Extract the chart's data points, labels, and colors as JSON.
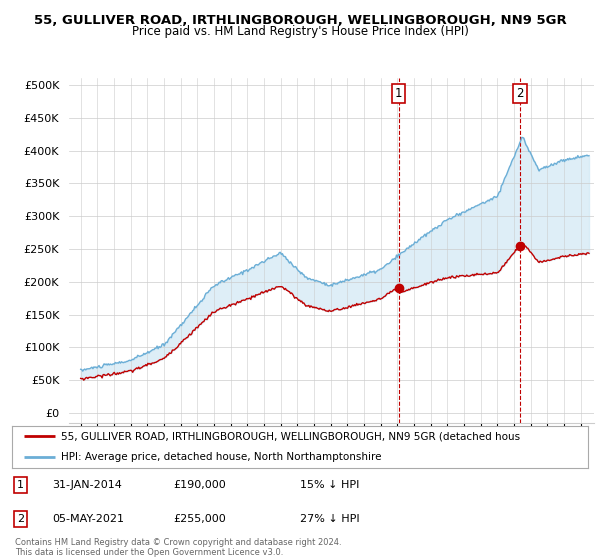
{
  "title_line1": "55, GULLIVER ROAD, IRTHLINGBOROUGH, WELLINGBOROUGH, NN9 5GR",
  "title_line2": "Price paid vs. HM Land Registry's House Price Index (HPI)",
  "ylabel_ticks": [
    "£0",
    "£50K",
    "£100K",
    "£150K",
    "£200K",
    "£250K",
    "£300K",
    "£350K",
    "£400K",
    "£450K",
    "£500K"
  ],
  "ytick_values": [
    0,
    50000,
    100000,
    150000,
    200000,
    250000,
    300000,
    350000,
    400000,
    450000,
    500000
  ],
  "hpi_color": "#6baed6",
  "price_color": "#c00000",
  "fill_color": "#d0e8f5",
  "sale1_x": 2014.08,
  "sale1_price": 190000,
  "sale1_date": "31-JAN-2014",
  "sale1_label": "15% ↓ HPI",
  "sale2_x": 2021.37,
  "sale2_price": 255000,
  "sale2_date": "05-MAY-2021",
  "sale2_label": "27% ↓ HPI",
  "legend_text1": "55, GULLIVER ROAD, IRTHLINGBOROUGH, WELLINGBOROUGH, NN9 5GR (detached hous",
  "legend_text2": "HPI: Average price, detached house, North Northamptonshire",
  "footer_text": "Contains HM Land Registry data © Crown copyright and database right 2024.\nThis data is licensed under the Open Government Licence v3.0.",
  "vline_color": "#c00000",
  "background_color": "#ffffff",
  "grid_color": "#cccccc",
  "box_edge_color": "#c00000",
  "annotation_box_color": "#c00000"
}
